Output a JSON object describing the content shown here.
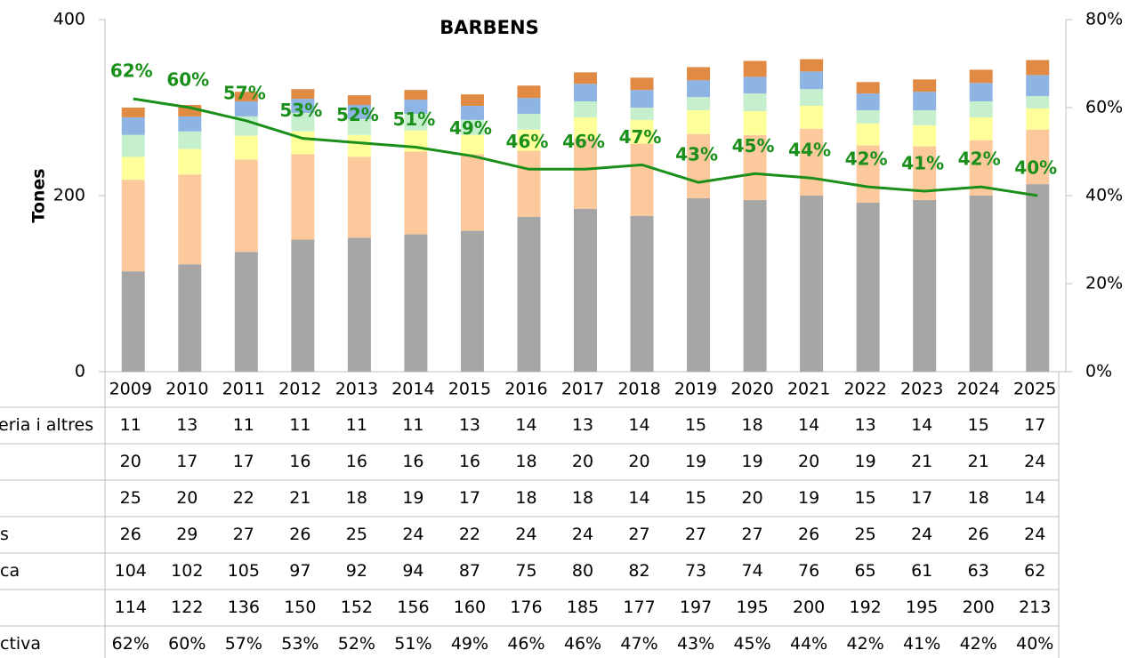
{
  "chart_data": {
    "type": "bar",
    "stacked": true,
    "title": "BARBENS",
    "ylabel": "Tones",
    "categories": [
      "2009",
      "2010",
      "2011",
      "2012",
      "2013",
      "2014",
      "2015",
      "2016",
      "2017",
      "2018",
      "2019",
      "2020",
      "2021",
      "2022",
      "2023",
      "2024",
      "2025"
    ],
    "ylim": [
      0,
      400
    ],
    "yticks": [
      0,
      200,
      400
    ],
    "y2lim": [
      0,
      80
    ],
    "y2ticks": [
      {
        "value": 0,
        "label": "0%"
      },
      {
        "value": 20,
        "label": "20%"
      },
      {
        "value": 40,
        "label": "40%"
      },
      {
        "value": 60,
        "label": "60%"
      },
      {
        "value": 80,
        "label": "80%"
      }
    ],
    "series": [
      {
        "name": "eria i altres",
        "color": "#e08a44",
        "values": [
          11,
          13,
          11,
          11,
          11,
          11,
          13,
          14,
          13,
          14,
          15,
          18,
          14,
          13,
          14,
          15,
          17
        ]
      },
      {
        "name": null,
        "color": "#8eb4e3",
        "values": [
          20,
          17,
          17,
          16,
          16,
          16,
          16,
          18,
          20,
          20,
          19,
          19,
          20,
          19,
          21,
          21,
          24
        ]
      },
      {
        "name": null,
        "color": "#c6efce",
        "values": [
          25,
          20,
          22,
          21,
          18,
          19,
          17,
          18,
          18,
          14,
          15,
          20,
          19,
          15,
          17,
          18,
          14
        ]
      },
      {
        "name": "s",
        "color": "#ffff99",
        "values": [
          26,
          29,
          27,
          26,
          25,
          24,
          22,
          24,
          24,
          27,
          27,
          27,
          26,
          25,
          24,
          26,
          24
        ]
      },
      {
        "name": "ca",
        "color": "#fcc99c",
        "values": [
          104,
          102,
          105,
          97,
          92,
          94,
          87,
          75,
          80,
          82,
          73,
          74,
          76,
          65,
          61,
          63,
          62
        ]
      },
      {
        "name": null,
        "color": "#a6a6a6",
        "values": [
          114,
          122,
          136,
          150,
          152,
          156,
          160,
          176,
          185,
          177,
          197,
          195,
          200,
          192,
          195,
          200,
          213
        ]
      },
      {
        "name": "ctiva",
        "color": "#1a8f1a",
        "type": "line",
        "axis": "y2",
        "values": [
          62,
          60,
          57,
          53,
          52,
          51,
          49,
          46,
          46,
          47,
          43,
          45,
          44,
          42,
          41,
          42,
          40
        ],
        "value_labels": [
          "62%",
          "60%",
          "57%",
          "53%",
          "52%",
          "51%",
          "49%",
          "46%",
          "46%",
          "47%",
          "43%",
          "45%",
          "44%",
          "42%",
          "41%",
          "42%",
          "40%"
        ]
      }
    ]
  }
}
